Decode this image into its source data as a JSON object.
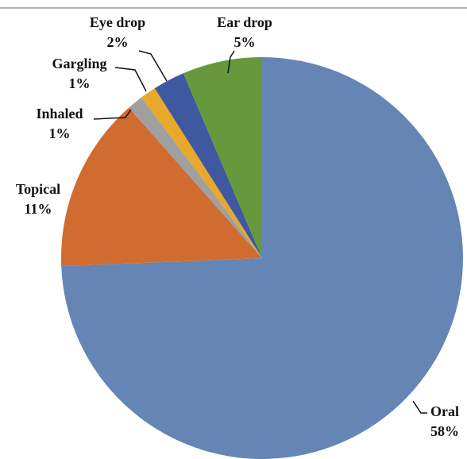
{
  "chart_data": {
    "type": "pie",
    "categories": [
      "Oral",
      "Topical",
      "Inhaled",
      "Gargling",
      "Eye drop",
      "Ear drop"
    ],
    "values": [
      58,
      11,
      1,
      1,
      2,
      5
    ],
    "value_labels": [
      "58%",
      "11%",
      "1%",
      "1%",
      "2%",
      "5%"
    ],
    "colors": [
      "#6585b5",
      "#d06c30",
      "#a0a0a0",
      "#e8a92a",
      "#3f58a0",
      "#67983c"
    ]
  }
}
